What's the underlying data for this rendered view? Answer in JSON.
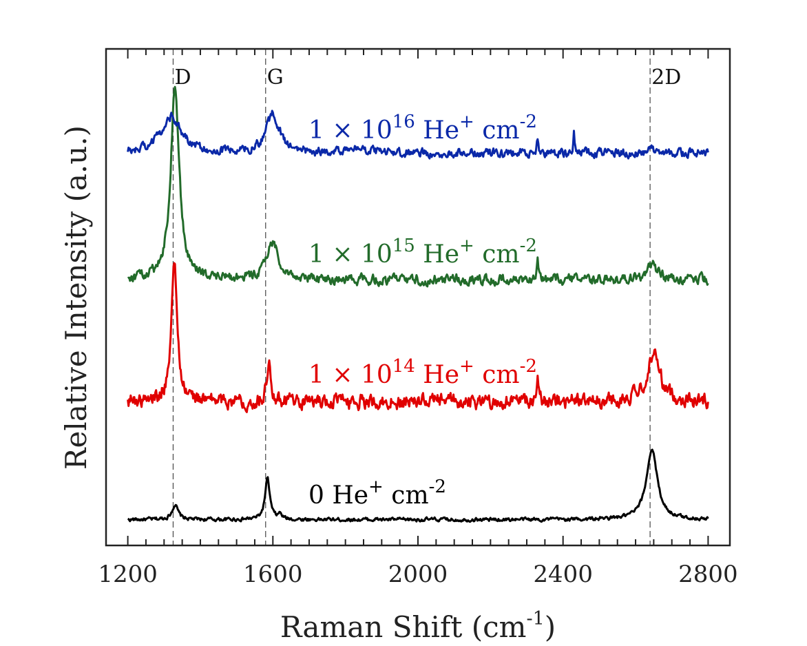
{
  "chart_data": {
    "type": "line",
    "xlabel": "Raman Shift (cm",
    "xlabel_sup": "-1",
    "xlabel_end": ")",
    "ylabel": "Relative Intensity (a.u.)",
    "xlim": [
      1140,
      2860
    ],
    "ylim": [
      0,
      10
    ],
    "x_ticks": [
      1200,
      1600,
      2000,
      2400,
      2800
    ],
    "x_tick_labels": [
      "1200",
      "1600",
      "2000",
      "2400",
      "2800"
    ],
    "minor_x_step": 50,
    "y_ticks_visible": false,
    "grid": false,
    "legend": "none",
    "peak_lines": [
      {
        "label": "D",
        "x": 1325
      },
      {
        "label": "G",
        "x": 1580
      },
      {
        "label": "2D",
        "x": 2640
      }
    ],
    "series": [
      {
        "label_parts": [
          "0 He",
          "+",
          " cm",
          "-2"
        ],
        "color": "#000000",
        "baseline": 0.52,
        "noise": 0.03,
        "peaks": [
          {
            "x": 1330,
            "height": 0.3,
            "width": 10
          },
          {
            "x": 1585,
            "height": 0.82,
            "width": 8
          },
          {
            "x": 1620,
            "height": 0.1,
            "width": 6
          },
          {
            "x": 2645,
            "height": 1.42,
            "width": 18
          }
        ]
      },
      {
        "label_parts": [
          "1 × 10",
          "14",
          " He",
          "+",
          " cm",
          "-2"
        ],
        "color": "#e00000",
        "baseline": 2.9,
        "noise": 0.12,
        "peaks": [
          {
            "x": 1328,
            "height": 2.75,
            "width": 10
          },
          {
            "x": 1590,
            "height": 0.7,
            "width": 8
          },
          {
            "x": 2330,
            "height": 0.45,
            "width": 3
          },
          {
            "x": 2650,
            "height": 1.0,
            "width": 20
          }
        ]
      },
      {
        "label_parts": [
          "1 × 10",
          "15",
          " He",
          "+",
          " cm",
          "-2"
        ],
        "color": "#226b2a",
        "baseline": 5.35,
        "noise": 0.08,
        "peaks": [
          {
            "x": 1330,
            "height": 3.9,
            "width": 14
          },
          {
            "x": 1600,
            "height": 0.75,
            "width": 20
          },
          {
            "x": 2330,
            "height": 0.4,
            "width": 3
          },
          {
            "x": 2645,
            "height": 0.3,
            "width": 18
          }
        ]
      },
      {
        "label_parts": [
          "1 × 10",
          "16",
          " He",
          "+",
          " cm",
          "-2"
        ],
        "color": "#0a28a8",
        "baseline": 7.9,
        "noise": 0.07,
        "peaks": [
          {
            "x": 1320,
            "height": 0.75,
            "width": 34
          },
          {
            "x": 1600,
            "height": 0.78,
            "width": 22
          },
          {
            "x": 1820,
            "height": 0.12,
            "width": 30
          },
          {
            "x": 2330,
            "height": 0.25,
            "width": 3
          },
          {
            "x": 2430,
            "height": 0.4,
            "width": 2
          },
          {
            "x": 2645,
            "height": 0.2,
            "width": 4
          }
        ]
      }
    ]
  }
}
